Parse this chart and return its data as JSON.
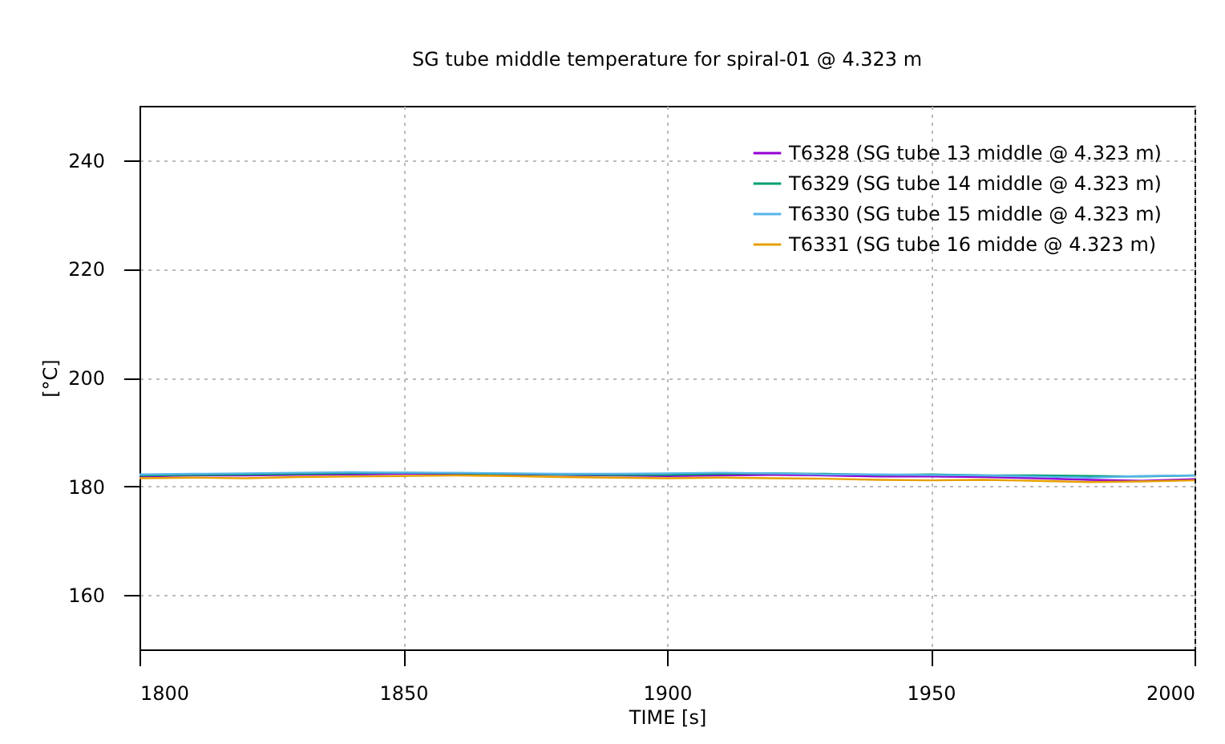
{
  "chart_data": {
    "type": "line",
    "title": "SG tube middle temperature for spiral-01 @ 4.323 m",
    "xlabel": "TIME [s]",
    "ylabel": "[°C]",
    "x": [
      1800,
      1810,
      1820,
      1830,
      1840,
      1850,
      1860,
      1870,
      1880,
      1890,
      1900,
      1910,
      1920,
      1930,
      1940,
      1950,
      1960,
      1970,
      1980,
      1990,
      2000
    ],
    "series": [
      {
        "name": "T6328 (SG tube 13 middle @ 4.323 m)",
        "color": "#9400d3",
        "values": [
          181.8,
          182,
          182,
          182.1,
          182.2,
          182.3,
          182.3,
          182.2,
          182.1,
          182,
          181.9,
          182,
          182.1,
          182,
          181.8,
          181.8,
          181.7,
          181.5,
          181.2,
          181,
          181.3
        ]
      },
      {
        "name": "T6329 (SG tube 14 middle @ 4.323 m)",
        "color": "#009e73",
        "values": [
          182,
          182.1,
          182.2,
          182.3,
          182.4,
          182.5,
          182.4,
          182.3,
          182.2,
          182.1,
          182.1,
          182.3,
          182.4,
          182.3,
          182.1,
          182.2,
          182,
          182,
          181.9,
          181.8,
          182
        ]
      },
      {
        "name": "T6330 (SG tube 15 middle @ 4.323 m)",
        "color": "#56b4e9",
        "values": [
          182.2,
          182.3,
          182.4,
          182.5,
          182.6,
          182.5,
          182.5,
          182.4,
          182.3,
          182.3,
          182.4,
          182.5,
          182.4,
          182.2,
          182.2,
          182.1,
          182,
          181.8,
          181.6,
          181.9,
          182
        ]
      },
      {
        "name": "T6331 (SG tube 16 midde @ 4.323 m)",
        "color": "#e69f00",
        "values": [
          181.5,
          181.6,
          181.5,
          181.7,
          181.8,
          181.9,
          182,
          181.9,
          181.7,
          181.6,
          181.5,
          181.6,
          181.5,
          181.4,
          181.2,
          181.1,
          181.2,
          181,
          180.8,
          180.9,
          181.1
        ]
      }
    ],
    "xlim": [
      1800,
      2000
    ],
    "xticks": [
      1800,
      1850,
      1900,
      1950,
      2000
    ],
    "ylim": [
      150,
      250
    ],
    "yticks": [
      160,
      180,
      200,
      220,
      240
    ],
    "grid": true,
    "legend": "top right",
    "marker": "none",
    "line_style": "solid"
  }
}
